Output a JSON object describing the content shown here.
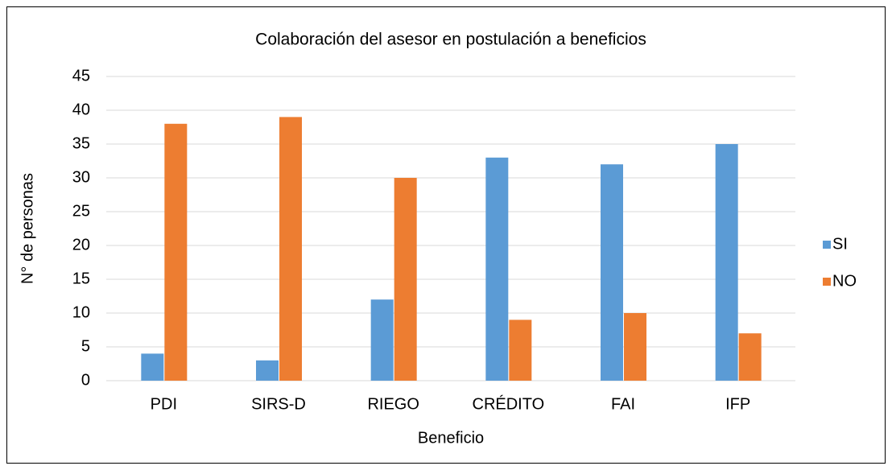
{
  "chart_data": {
    "type": "bar",
    "title": "Colaboración del asesor en postulación a beneficios",
    "x_label": "Beneficio",
    "y_label": "N° de personas",
    "categories": [
      "PDI",
      "SIRS-D",
      "RIEGO",
      "CRÉDITO",
      "FAI",
      "IFP"
    ],
    "series": [
      {
        "name": "SI",
        "color": "#5b9bd5",
        "values": [
          4,
          3,
          12,
          33,
          32,
          35
        ]
      },
      {
        "name": "NO",
        "color": "#ed7d31",
        "values": [
          38,
          39,
          30,
          9,
          10,
          7
        ]
      }
    ],
    "ylim": [
      0,
      45
    ],
    "yticks": [
      0,
      5,
      10,
      15,
      20,
      25,
      30,
      35,
      40,
      45
    ],
    "grid": true,
    "legend": "right"
  }
}
